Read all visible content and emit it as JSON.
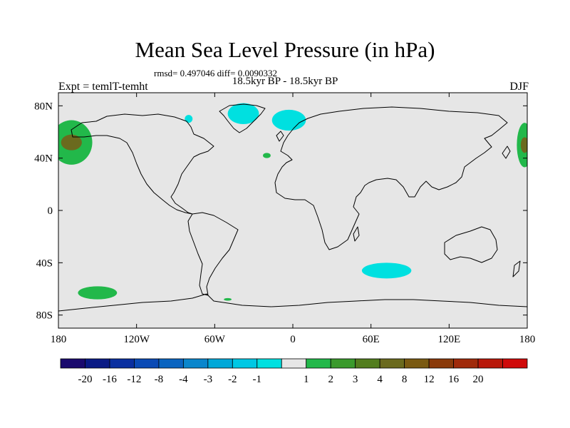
{
  "figure": {
    "title": "Mean Sea Level Pressure (in hPa)",
    "stats": "rmsd= 0.497046 diff= 0.0090332",
    "period": "18.5kyr BP - 18.5kyr BP",
    "experiment": "Expt = temlT-temht",
    "season": "DJF"
  },
  "map": {
    "projection": "cylindrical equidistant",
    "lon_range": [
      -180,
      180
    ],
    "lat_range": [
      -90,
      90
    ],
    "x_ticks": [
      {
        "lon": -180,
        "label": "180"
      },
      {
        "lon": -120,
        "label": "120W"
      },
      {
        "lon": -60,
        "label": "60W"
      },
      {
        "lon": 0,
        "label": "0"
      },
      {
        "lon": 60,
        "label": "60E"
      },
      {
        "lon": 120,
        "label": "120E"
      },
      {
        "lon": 180,
        "label": "180"
      }
    ],
    "y_ticks": [
      {
        "lat": 80,
        "label": "80N"
      },
      {
        "lat": 40,
        "label": "40N"
      },
      {
        "lat": 0,
        "label": "0"
      },
      {
        "lat": -40,
        "label": "40S"
      },
      {
        "lat": -80,
        "label": "80S"
      }
    ],
    "background_color": "#e6e6e6"
  },
  "anomalies": [
    {
      "name": "north-pacific-positive-west",
      "lon": -170,
      "lat": 52,
      "rx_deg": 16,
      "ry_deg": 17,
      "level": "1 to 2",
      "color": "#22b84a",
      "core": {
        "level": "3 to 4",
        "color": "#6b6a1e",
        "rx_deg": 8,
        "ry_deg": 6
      }
    },
    {
      "name": "north-pacific-positive-east",
      "lon": 178,
      "lat": 50,
      "rx_deg": 6,
      "ry_deg": 17,
      "level": "1 to 2",
      "color": "#22b84a",
      "core": {
        "level": "3 to 4",
        "color": "#6b6a1e",
        "rx_deg": 3,
        "ry_deg": 6
      }
    },
    {
      "name": "greenland-negative",
      "lon": -38,
      "lat": 74,
      "rx_deg": 12,
      "ry_deg": 8,
      "level": "-1 to -2",
      "color": "#00e0e0"
    },
    {
      "name": "norwegian-sea-negative",
      "lon": -3,
      "lat": 69,
      "rx_deg": 13,
      "ry_deg": 8,
      "level": "-1 to -2",
      "color": "#00e0e0"
    },
    {
      "name": "canada-negative",
      "lon": -80,
      "lat": 70,
      "rx_deg": 3,
      "ry_deg": 3,
      "level": "-1 to -2",
      "color": "#00e0e0"
    },
    {
      "name": "north-atlantic-positive",
      "lon": -20,
      "lat": 42,
      "rx_deg": 3,
      "ry_deg": 2,
      "level": "1 to 2",
      "color": "#22b84a"
    },
    {
      "name": "indian-ocean-negative",
      "lon": 72,
      "lat": -46,
      "rx_deg": 19,
      "ry_deg": 6,
      "level": "-1 to -2",
      "color": "#00e0e0"
    },
    {
      "name": "south-pacific-positive",
      "lon": -150,
      "lat": -63,
      "rx_deg": 15,
      "ry_deg": 5,
      "level": "1 to 2",
      "color": "#22b84a"
    },
    {
      "name": "weddell-positive",
      "lon": -50,
      "lat": -68,
      "rx_deg": 3,
      "ry_deg": 1,
      "level": "1 to 2",
      "color": "#22b84a"
    }
  ],
  "colorbar": {
    "colors": [
      "#1a0a6e",
      "#0a1a85",
      "#0a2fa0",
      "#0a4ab5",
      "#0a64c0",
      "#0a86cc",
      "#00a8d8",
      "#00c8e4",
      "#00e0e0",
      "#e6e6e6",
      "#22b84a",
      "#3a9a2c",
      "#527d1e",
      "#6b6a1e",
      "#7a5a12",
      "#8a3a0a",
      "#a02a0a",
      "#b8180a",
      "#d00a0a"
    ],
    "labels": [
      "-20",
      "-16",
      "-12",
      "-8",
      "-4",
      "-3",
      "-2",
      "-1",
      "1",
      "2",
      "3",
      "4",
      "8",
      "12",
      "16",
      "20"
    ]
  }
}
